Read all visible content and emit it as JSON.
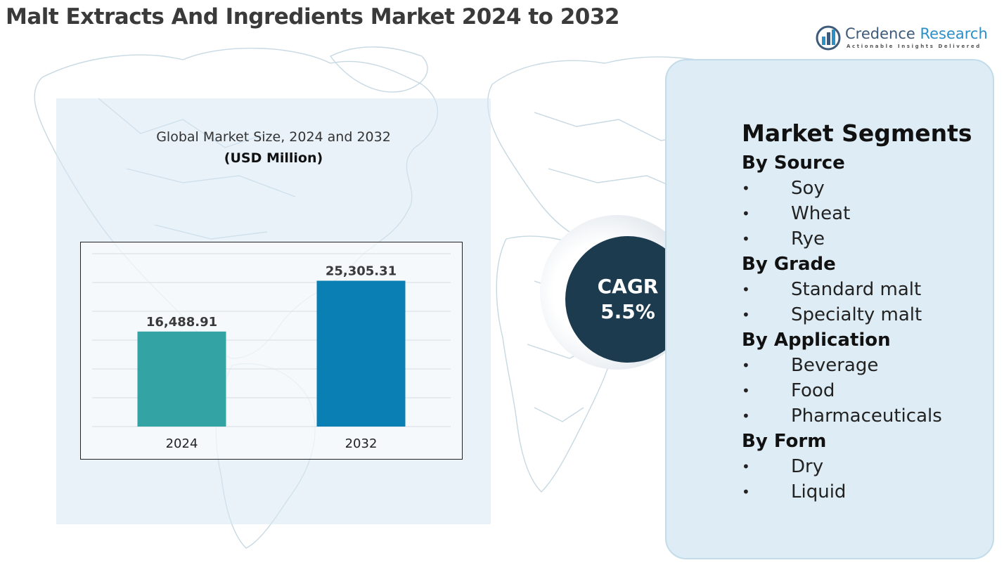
{
  "title": "Malt Extracts And Ingredients Market 2024 to 2032",
  "logo": {
    "name_primary": "Credence",
    "name_secondary": " Research",
    "tagline": "Actionable Insights Delivered"
  },
  "chart_data": {
    "type": "bar",
    "title": "Global Market Size, 2024 and 2032",
    "subtitle": "(USD Million)",
    "categories": [
      "2024",
      "2032"
    ],
    "values": [
      16488.91,
      25305.31
    ],
    "value_labels": [
      "16,488.91",
      "25,305.31"
    ],
    "colors": [
      "#34a3a3",
      "#0a7fb3"
    ],
    "ylim": [
      0,
      30000
    ],
    "grid": true
  },
  "cagr": {
    "label": "CAGR",
    "value": "5.5%"
  },
  "segments": {
    "title": "Market Segments",
    "groups": [
      {
        "title": "By Source",
        "items": [
          "Soy",
          "Wheat",
          "Rye"
        ]
      },
      {
        "title": "By Grade",
        "items": [
          "Standard malt",
          "Specialty malt"
        ]
      },
      {
        "title": "By Application",
        "items": [
          "Beverage",
          "Food",
          "Pharmaceuticals"
        ]
      },
      {
        "title": "By Form",
        "items": [
          "Dry",
          "Liquid"
        ]
      }
    ]
  },
  "colors": {
    "title_text": "#3a3a3a",
    "cagr_circle": "#1d3b4f",
    "right_panel": "#deedf5",
    "brand": "#2b8fc8"
  }
}
